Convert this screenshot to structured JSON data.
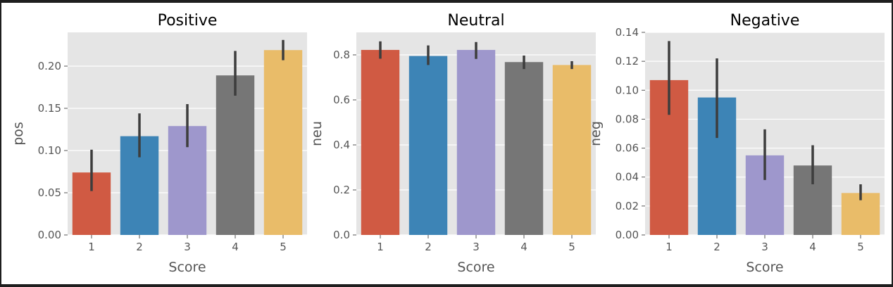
{
  "chart_data": [
    {
      "type": "bar",
      "title": "Positive",
      "xlabel": "Score",
      "ylabel": "pos",
      "categories": [
        "1",
        "2",
        "3",
        "4",
        "5"
      ],
      "values": [
        0.074,
        0.117,
        0.129,
        0.189,
        0.219
      ],
      "error_low": [
        0.052,
        0.092,
        0.104,
        0.165,
        0.207
      ],
      "error_high": [
        0.101,
        0.144,
        0.155,
        0.218,
        0.231
      ],
      "ylim": [
        0,
        0.24
      ],
      "yticks": [
        0.0,
        0.05,
        0.1,
        0.15,
        0.2
      ],
      "ytick_labels": [
        "0.00",
        "0.05",
        "0.10",
        "0.15",
        "0.20"
      ],
      "grid": true
    },
    {
      "type": "bar",
      "title": "Neutral",
      "xlabel": "Score",
      "ylabel": "neu",
      "categories": [
        "1",
        "2",
        "3",
        "4",
        "5"
      ],
      "values": [
        0.822,
        0.795,
        0.822,
        0.768,
        0.755
      ],
      "error_low": [
        0.783,
        0.755,
        0.782,
        0.737,
        0.737
      ],
      "error_high": [
        0.86,
        0.842,
        0.857,
        0.797,
        0.772
      ],
      "ylim": [
        0,
        0.9
      ],
      "yticks": [
        0.0,
        0.2,
        0.4,
        0.6,
        0.8
      ],
      "ytick_labels": [
        "0.0",
        "0.2",
        "0.4",
        "0.6",
        "0.8"
      ],
      "grid": true
    },
    {
      "type": "bar",
      "title": "Negative",
      "xlabel": "Score",
      "ylabel": "neg",
      "categories": [
        "1",
        "2",
        "3",
        "4",
        "5"
      ],
      "values": [
        0.107,
        0.095,
        0.055,
        0.048,
        0.029
      ],
      "error_low": [
        0.083,
        0.067,
        0.038,
        0.035,
        0.024
      ],
      "error_high": [
        0.134,
        0.122,
        0.073,
        0.062,
        0.035
      ],
      "ylim": [
        0,
        0.14
      ],
      "yticks": [
        0.0,
        0.02,
        0.04,
        0.06,
        0.08,
        0.1,
        0.12,
        0.14
      ],
      "ytick_labels": [
        "0.00",
        "0.02",
        "0.04",
        "0.06",
        "0.08",
        "0.10",
        "0.12",
        "0.14"
      ],
      "grid": true
    }
  ],
  "colors": {
    "figure_background": "#ffffff",
    "axes_background": "#e5e5e5",
    "grid": "#ffffff",
    "error_bar": "#3d3d3d",
    "bars": [
      "#d05a43",
      "#3d84b6",
      "#9e97cc",
      "#767676",
      "#e9bc69"
    ]
  }
}
